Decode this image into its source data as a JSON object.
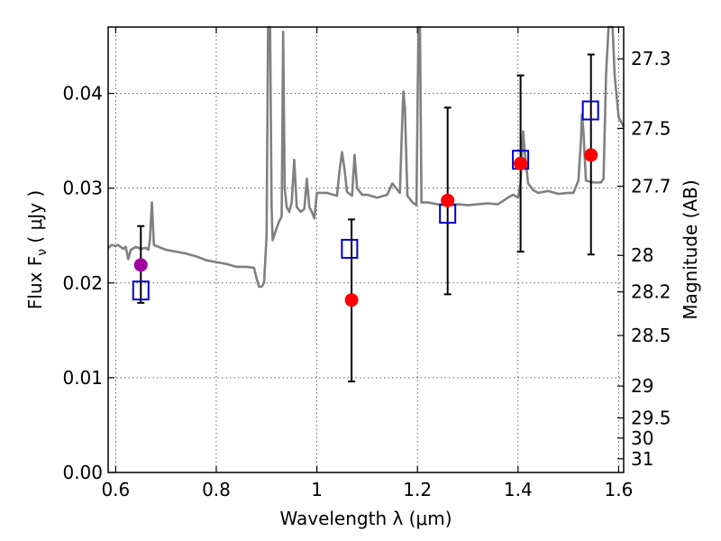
{
  "chart_data": {
    "type": "scatter",
    "xlabel": "Wavelength  λ (μm)",
    "ylabel": "Flux  F",
    "ylabel_sub": "ν",
    "ylabel_unit": " ( μJy )",
    "y2label": "Magnitude (AB)",
    "xlim": [
      0.585,
      1.61
    ],
    "ylim": [
      0.0,
      0.047
    ],
    "grid": true,
    "x_ticks": [
      {
        "value": 0.6,
        "label": "0.6"
      },
      {
        "value": 0.8,
        "label": "0.8"
      },
      {
        "value": 1.0,
        "label": "1"
      },
      {
        "value": 1.2,
        "label": "1.2"
      },
      {
        "value": 1.4,
        "label": "1.4"
      },
      {
        "value": 1.6,
        "label": "1.6"
      }
    ],
    "y_ticks": [
      {
        "value": 0.0,
        "label": "0.00"
      },
      {
        "value": 0.01,
        "label": "0.01"
      },
      {
        "value": 0.02,
        "label": "0.02"
      },
      {
        "value": 0.03,
        "label": "0.03"
      },
      {
        "value": 0.04,
        "label": "0.04"
      }
    ],
    "y2_ticks": [
      {
        "mag": 27.3,
        "label": "27.3"
      },
      {
        "mag": 27.5,
        "label": "27.5"
      },
      {
        "mag": 27.7,
        "label": "27.7"
      },
      {
        "mag": 28.0,
        "label": "28"
      },
      {
        "mag": 28.2,
        "label": "28.2"
      },
      {
        "mag": 28.5,
        "label": "28.5"
      },
      {
        "mag": 29.0,
        "label": "29"
      },
      {
        "mag": 29.5,
        "label": "29.5"
      },
      {
        "mag": 30.0,
        "label": "30"
      },
      {
        "mag": 31.0,
        "label": "31"
      }
    ],
    "series": [
      {
        "name": "model-sed",
        "kind": "line",
        "color": "#808080",
        "points": [
          [
            0.585,
            0.0237
          ],
          [
            0.592,
            0.024
          ],
          [
            0.6,
            0.0239
          ],
          [
            0.605,
            0.024
          ],
          [
            0.615,
            0.0236
          ],
          [
            0.62,
            0.0238
          ],
          [
            0.625,
            0.0225
          ],
          [
            0.63,
            0.0235
          ],
          [
            0.64,
            0.0238
          ],
          [
            0.65,
            0.0236
          ],
          [
            0.66,
            0.0237
          ],
          [
            0.665,
            0.0235
          ],
          [
            0.668,
            0.0245
          ],
          [
            0.672,
            0.0285
          ],
          [
            0.676,
            0.024
          ],
          [
            0.69,
            0.0237
          ],
          [
            0.7,
            0.0235
          ],
          [
            0.72,
            0.0233
          ],
          [
            0.74,
            0.0231
          ],
          [
            0.76,
            0.0228
          ],
          [
            0.78,
            0.0224
          ],
          [
            0.8,
            0.0222
          ],
          [
            0.82,
            0.022
          ],
          [
            0.84,
            0.0217
          ],
          [
            0.86,
            0.0217
          ],
          [
            0.875,
            0.0216
          ],
          [
            0.88,
            0.0205
          ],
          [
            0.885,
            0.0196
          ],
          [
            0.89,
            0.0196
          ],
          [
            0.895,
            0.02
          ],
          [
            0.9,
            0.025
          ],
          [
            0.903,
            0.047
          ],
          [
            0.907,
            0.047
          ],
          [
            0.91,
            0.028
          ],
          [
            0.912,
            0.0245
          ],
          [
            0.918,
            0.0255
          ],
          [
            0.925,
            0.0265
          ],
          [
            0.93,
            0.027
          ],
          [
            0.933,
            0.0465
          ],
          [
            0.936,
            0.03
          ],
          [
            0.94,
            0.028
          ],
          [
            0.945,
            0.0275
          ],
          [
            0.95,
            0.0285
          ],
          [
            0.955,
            0.033
          ],
          [
            0.96,
            0.028
          ],
          [
            0.968,
            0.0275
          ],
          [
            0.975,
            0.0278
          ],
          [
            0.98,
            0.031
          ],
          [
            0.985,
            0.028
          ],
          [
            0.99,
            0.0275
          ],
          [
            0.995,
            0.0268
          ],
          [
            1.0,
            0.0295
          ],
          [
            1.02,
            0.0295
          ],
          [
            1.04,
            0.0292
          ],
          [
            1.045,
            0.0318
          ],
          [
            1.05,
            0.0338
          ],
          [
            1.055,
            0.032
          ],
          [
            1.06,
            0.0296
          ],
          [
            1.07,
            0.0292
          ],
          [
            1.075,
            0.0335
          ],
          [
            1.08,
            0.03
          ],
          [
            1.09,
            0.0293
          ],
          [
            1.1,
            0.0293
          ],
          [
            1.12,
            0.029
          ],
          [
            1.14,
            0.0293
          ],
          [
            1.15,
            0.0305
          ],
          [
            1.165,
            0.0295
          ],
          [
            1.17,
            0.0375
          ],
          [
            1.172,
            0.0402
          ],
          [
            1.175,
            0.0385
          ],
          [
            1.18,
            0.0292
          ],
          [
            1.19,
            0.0285
          ],
          [
            1.198,
            0.0282
          ],
          [
            1.202,
            0.047
          ],
          [
            1.205,
            0.047
          ],
          [
            1.208,
            0.0285
          ],
          [
            1.22,
            0.0285
          ],
          [
            1.24,
            0.0283
          ],
          [
            1.26,
            0.0282
          ],
          [
            1.28,
            0.0283
          ],
          [
            1.3,
            0.0282
          ],
          [
            1.32,
            0.0283
          ],
          [
            1.34,
            0.0284
          ],
          [
            1.36,
            0.0283
          ],
          [
            1.38,
            0.029
          ],
          [
            1.39,
            0.0293
          ],
          [
            1.4,
            0.029
          ],
          [
            1.405,
            0.0305
          ],
          [
            1.41,
            0.036
          ],
          [
            1.413,
            0.034
          ],
          [
            1.42,
            0.0305
          ],
          [
            1.43,
            0.0298
          ],
          [
            1.44,
            0.0295
          ],
          [
            1.46,
            0.0297
          ],
          [
            1.48,
            0.0294
          ],
          [
            1.5,
            0.0295
          ],
          [
            1.51,
            0.0295
          ],
          [
            1.52,
            0.0308
          ],
          [
            1.525,
            0.035
          ],
          [
            1.527,
            0.0378
          ],
          [
            1.53,
            0.036
          ],
          [
            1.535,
            0.0308
          ],
          [
            1.55,
            0.0306
          ],
          [
            1.565,
            0.0306
          ],
          [
            1.57,
            0.031
          ],
          [
            1.575,
            0.042
          ],
          [
            1.58,
            0.047
          ],
          [
            1.588,
            0.047
          ],
          [
            1.592,
            0.042
          ],
          [
            1.6,
            0.0375
          ],
          [
            1.61,
            0.0365
          ]
        ]
      },
      {
        "name": "observed",
        "kind": "errorbar",
        "marker": "circle",
        "points": [
          {
            "x": 0.65,
            "y": 0.0219,
            "yerr_low": 0.0179,
            "yerr_high": 0.026,
            "color": "#a000a0"
          },
          {
            "x": 1.069,
            "y": 0.0182,
            "yerr_low": 0.0096,
            "yerr_high": 0.0267,
            "color": "#ff0000"
          },
          {
            "x": 1.26,
            "y": 0.0287,
            "yerr_low": 0.0188,
            "yerr_high": 0.0385,
            "color": "#ff0000"
          },
          {
            "x": 1.405,
            "y": 0.0326,
            "yerr_low": 0.0233,
            "yerr_high": 0.0419,
            "color": "#ff0000"
          },
          {
            "x": 1.545,
            "y": 0.0335,
            "yerr_low": 0.023,
            "yerr_high": 0.0441,
            "color": "#ff0000"
          }
        ]
      },
      {
        "name": "model-bandpass",
        "kind": "scatter",
        "marker": "open-square",
        "color": "#0000cc",
        "points": [
          {
            "x": 0.65,
            "y": 0.0192
          },
          {
            "x": 1.065,
            "y": 0.0236
          },
          {
            "x": 1.26,
            "y": 0.0273
          },
          {
            "x": 1.405,
            "y": 0.033
          },
          {
            "x": 1.544,
            "y": 0.0382
          }
        ]
      }
    ]
  }
}
